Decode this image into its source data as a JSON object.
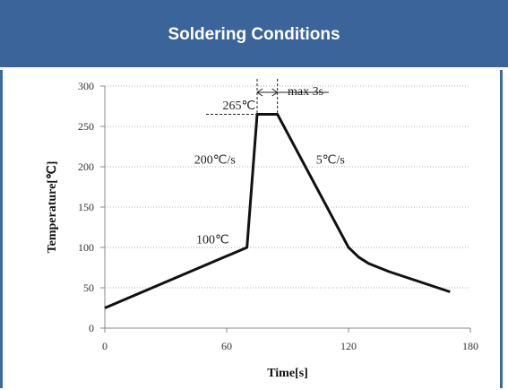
{
  "header": {
    "title": "Soldering Conditions"
  },
  "colors": {
    "header_bg": "#3a649a",
    "line": "#111111",
    "grid": "#b0b0b0"
  },
  "chart_data": {
    "type": "line",
    "title": "",
    "xlabel": "Time[s]",
    "ylabel": "Temperature[℃]",
    "xlim": [
      0,
      180
    ],
    "ylim": [
      0,
      300
    ],
    "xticks": [
      0,
      60,
      120,
      180
    ],
    "yticks": [
      0,
      50,
      100,
      150,
      200,
      250,
      300
    ],
    "grid": "horizontal dotted",
    "series": [
      {
        "x": [
          0,
          70,
          75,
          85,
          120,
          125,
          130,
          140,
          170
        ],
        "y": [
          25,
          100,
          265,
          265,
          100,
          88,
          80,
          70,
          45
        ]
      }
    ],
    "annotations": [
      {
        "text": "265℃",
        "x": 58,
        "y": 271
      },
      {
        "text": "200℃/s",
        "x": 44,
        "y": 204
      },
      {
        "text": "5℃/s",
        "x": 104,
        "y": 204
      },
      {
        "text": "100℃",
        "x": 45,
        "y": 105
      },
      {
        "text": "max 3s",
        "x": 90,
        "y": 289
      }
    ]
  }
}
